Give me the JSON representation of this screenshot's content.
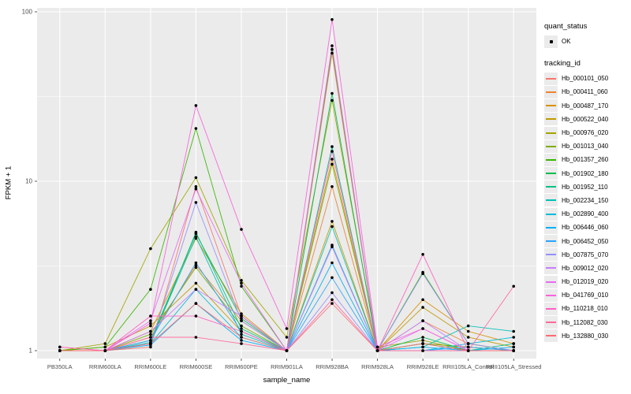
{
  "chart_data": {
    "type": "line",
    "xlabel": "sample_name",
    "ylabel": "FPKM + 1",
    "y_scale": "log10",
    "y_ticks": [
      1,
      10,
      100
    ],
    "y_minor": [
      3.1623,
      31.623
    ],
    "ylim": [
      0.9,
      105
    ],
    "grid": "on",
    "legend_position": "right",
    "point_color": "#000000",
    "panel_bg": "#EBEBEB",
    "grid_color": "#FFFFFF",
    "tick_text_color": "#4D4D4D",
    "categories": [
      "PB350LA",
      "RRIM600LA",
      "RRIM600LE",
      "RRIM600SE",
      "RRIM600PE",
      "RRIM901LA",
      "RRIM928BA",
      "RRIM928LA",
      "RRIM928LE",
      "RRII105LA_Control",
      "RRII105LA_Stressed"
    ],
    "series": [
      {
        "name": "Hb_000101_050",
        "color": "#F8766D",
        "values": [
          1.05,
          1.0,
          1.05,
          9.3,
          1.6,
          1.0,
          57.0,
          1.0,
          1.1,
          1.05,
          1.0
        ]
      },
      {
        "name": "Hb_000411_060",
        "color": "#EA8331",
        "values": [
          1.0,
          1.0,
          1.2,
          3.2,
          1.5,
          1.0,
          9.3,
          1.0,
          1.5,
          1.1,
          1.0
        ]
      },
      {
        "name": "Hb_000487_170",
        "color": "#D89000",
        "values": [
          1.0,
          1.0,
          1.3,
          4.6,
          1.65,
          1.0,
          13.5,
          1.0,
          2.0,
          1.3,
          1.1
        ]
      },
      {
        "name": "Hb_000522_040",
        "color": "#C09B00",
        "values": [
          1.0,
          1.05,
          1.4,
          2.5,
          1.3,
          1.0,
          5.8,
          1.0,
          1.8,
          1.2,
          1.05
        ]
      },
      {
        "name": "Hb_000976_020",
        "color": "#A3A500",
        "values": [
          1.0,
          1.1,
          4.0,
          10.5,
          2.6,
          1.2,
          30.0,
          1.05,
          1.15,
          1.0,
          1.0
        ]
      },
      {
        "name": "Hb_001013_040",
        "color": "#7CAE00",
        "values": [
          1.0,
          1.0,
          1.25,
          3.1,
          1.4,
          1.0,
          12.6,
          1.0,
          1.1,
          1.05,
          1.0
        ]
      },
      {
        "name": "Hb_001357_260",
        "color": "#39B600",
        "values": [
          1.0,
          1.05,
          2.3,
          20.5,
          2.4,
          1.0,
          60.0,
          1.0,
          2.9,
          1.1,
          1.0
        ]
      },
      {
        "name": "Hb_001902_180",
        "color": "#00BB4E",
        "values": [
          1.0,
          1.0,
          1.15,
          4.9,
          1.55,
          1.0,
          33.0,
          1.0,
          1.2,
          1.0,
          1.0
        ]
      },
      {
        "name": "Hb_001952_110",
        "color": "#00C087",
        "values": [
          1.0,
          1.0,
          1.1,
          5.0,
          1.35,
          1.0,
          16.0,
          1.0,
          1.1,
          1.0,
          1.1
        ]
      },
      {
        "name": "Hb_002234_150",
        "color": "#00C0B4",
        "values": [
          1.0,
          1.0,
          1.12,
          4.7,
          1.25,
          1.0,
          5.4,
          1.0,
          1.05,
          1.4,
          1.3
        ]
      },
      {
        "name": "Hb_002890_400",
        "color": "#00BCD8",
        "values": [
          1.0,
          1.0,
          1.1,
          2.3,
          1.2,
          1.0,
          4.2,
          1.0,
          1.0,
          1.1,
          1.2
        ]
      },
      {
        "name": "Hb_006446_060",
        "color": "#00B0F6",
        "values": [
          1.0,
          1.0,
          1.08,
          1.9,
          1.15,
          1.0,
          3.3,
          1.0,
          1.05,
          1.0,
          1.05
        ]
      },
      {
        "name": "Hb_006452_050",
        "color": "#29A3FF",
        "values": [
          1.0,
          1.0,
          1.15,
          3.3,
          1.3,
          1.0,
          2.7,
          1.0,
          1.0,
          1.05,
          1.0
        ]
      },
      {
        "name": "Hb_007875_070",
        "color": "#9590FF",
        "values": [
          1.0,
          1.0,
          1.1,
          7.5,
          1.5,
          1.0,
          2.2,
          1.0,
          2.85,
          1.1,
          1.0
        ]
      },
      {
        "name": "Hb_009012_020",
        "color": "#C77CFF",
        "values": [
          1.0,
          1.0,
          1.3,
          2.3,
          1.6,
          1.0,
          4.1,
          1.0,
          1.5,
          1.0,
          1.0
        ]
      },
      {
        "name": "Hb_012019_020",
        "color": "#E76BF3",
        "values": [
          1.0,
          1.0,
          1.5,
          9.0,
          2.5,
          1.0,
          63.0,
          1.0,
          1.35,
          1.0,
          1.0
        ]
      },
      {
        "name": "Hb_041769_010",
        "color": "#FA62DB",
        "values": [
          1.0,
          1.0,
          1.45,
          28.0,
          5.2,
          1.35,
          90.0,
          1.05,
          1.35,
          1.0,
          1.0
        ]
      },
      {
        "name": "Hb_110218_010",
        "color": "#FF61C3",
        "values": [
          1.05,
          1.0,
          1.6,
          1.6,
          1.3,
          1.0,
          15.0,
          1.0,
          3.7,
          1.0,
          1.0
        ]
      },
      {
        "name": "Hb_112082_030",
        "color": "#FF689E",
        "values": [
          1.0,
          1.0,
          1.2,
          1.2,
          1.1,
          1.0,
          2.0,
          1.0,
          1.0,
          1.0,
          2.4
        ]
      },
      {
        "name": "Hb_132880_030",
        "color": "#FF6B70",
        "values": [
          1.0,
          1.0,
          1.1,
          1.9,
          1.2,
          1.0,
          1.9,
          1.0,
          1.1,
          1.0,
          1.0
        ]
      }
    ]
  },
  "legend": {
    "quant_status": {
      "title": "quant_status",
      "items": [
        {
          "label": "OK"
        }
      ]
    },
    "tracking_id": {
      "title": "tracking_id"
    }
  }
}
